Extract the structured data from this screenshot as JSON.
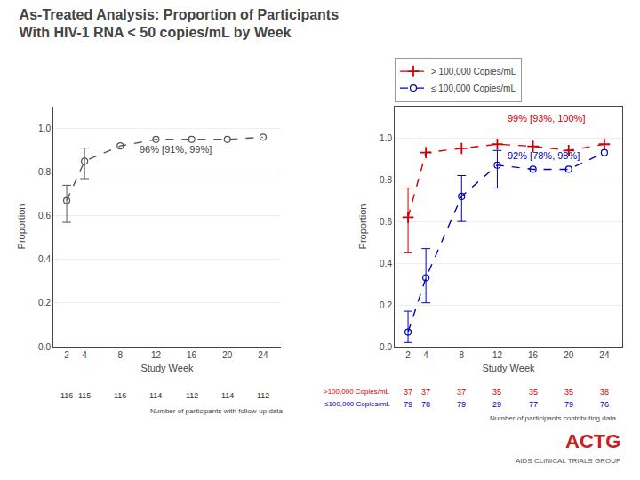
{
  "chart_data": [
    {
      "type": "line",
      "title": "As-Treated Analysis: Proportion of Participants",
      "subtitle": "With HIV-1 RNA < 50 copies/mL by Week",
      "x": [
        2,
        4,
        8,
        12,
        16,
        20,
        24
      ],
      "series": [
        {
          "values": [
            0.67,
            0.85,
            0.92,
            0.95,
            0.95,
            0.95,
            0.96
          ],
          "ci_lower": [
            0.57,
            0.77,
            null,
            null,
            null,
            null,
            null
          ],
          "ci_upper": [
            0.74,
            0.91,
            null,
            null,
            null,
            null,
            null
          ],
          "color": "#555555",
          "marker": "o",
          "line_style": "dashed"
        }
      ],
      "n_at_risk": [
        116,
        115,
        116,
        114,
        112,
        114,
        112
      ],
      "n_label": "Number of participants with follow-up data",
      "annotations": [
        {
          "text": "96% [91%, 99%]",
          "x": 10,
          "y": 0.87
        }
      ],
      "xlabel": "Study Week",
      "ylabel": "Proportion",
      "xlim": [
        0.5,
        26
      ],
      "xticks": [
        2,
        4,
        8,
        12,
        16,
        20,
        24
      ],
      "ylim": [
        0.0,
        1.1
      ],
      "yticks": [
        {
          "value": 0.0,
          "label": "0.0"
        },
        {
          "value": 0.2,
          "label": "0.2"
        },
        {
          "value": 0.4,
          "label": "0.4"
        },
        {
          "value": 0.6,
          "label": "0.6"
        },
        {
          "value": 0.8,
          "label": "0.8"
        },
        {
          "value": 1.0,
          "label": "1.0"
        }
      ],
      "grid": "y"
    },
    {
      "type": "line",
      "x": [
        2,
        4,
        8,
        12,
        16,
        20,
        24
      ],
      "series": [
        {
          "name": "> 100,000 Copies/mL",
          "color": "#CC0000",
          "marker": "+",
          "line_style": "dashed",
          "values": [
            0.62,
            0.93,
            0.95,
            0.97,
            0.96,
            0.94,
            0.97
          ],
          "ci_lower": [
            0.45,
            null,
            null,
            null,
            null,
            null,
            null
          ],
          "ci_upper": [
            0.76,
            null,
            null,
            null,
            null,
            null,
            null
          ],
          "n_at_risk": [
            37,
            37,
            37,
            35,
            35,
            35,
            38
          ],
          "n_row_label": ">100,000 Copies/mL"
        },
        {
          "name": "≤ 100,000 Copies/mL",
          "color": "#0000BB",
          "marker": "o",
          "line_style": "dashed",
          "values": [
            0.07,
            0.33,
            0.72,
            0.87,
            0.85,
            0.85,
            0.93
          ],
          "ci_lower": [
            0.02,
            0.21,
            0.6,
            0.76,
            null,
            null,
            null
          ],
          "ci_upper": [
            0.17,
            0.47,
            0.82,
            0.94,
            null,
            null,
            null
          ],
          "n_at_risk": [
            79,
            78,
            79,
            29,
            77,
            79,
            76
          ],
          "n_row_label": "≤100,000 Copies/mL"
        }
      ],
      "n_label": "Number of participants contributing data",
      "annotations": [
        {
          "text": "99% [93%, 100%]",
          "x": 13,
          "y": 1.06,
          "color": "#CC0000"
        },
        {
          "text": "92% [78%, 98%]",
          "x": 13,
          "y": 0.88,
          "color": "#0000BB"
        },
        {
          "text": "ACTG",
          "color": "#C82020"
        },
        {
          "text": "AIDS CLINICAL TRIALS GROUP"
        }
      ],
      "xlabel": "Study Week",
      "ylabel": "Proportion",
      "xlim": [
        0.5,
        26
      ],
      "xticks": [
        2,
        4,
        8,
        12,
        16,
        20,
        24
      ],
      "ylim": [
        0.0,
        1.15
      ],
      "yticks": [
        {
          "value": 0.0,
          "label": "0.0"
        },
        {
          "value": 0.2,
          "label": "0.2"
        },
        {
          "value": 0.4,
          "label": "0.4"
        },
        {
          "value": 0.6,
          "label": "0.6"
        },
        {
          "value": 0.8,
          "label": "0.8"
        },
        {
          "value": 1.0,
          "label": "1.0"
        }
      ],
      "grid": "y",
      "legend": "upper left"
    }
  ]
}
